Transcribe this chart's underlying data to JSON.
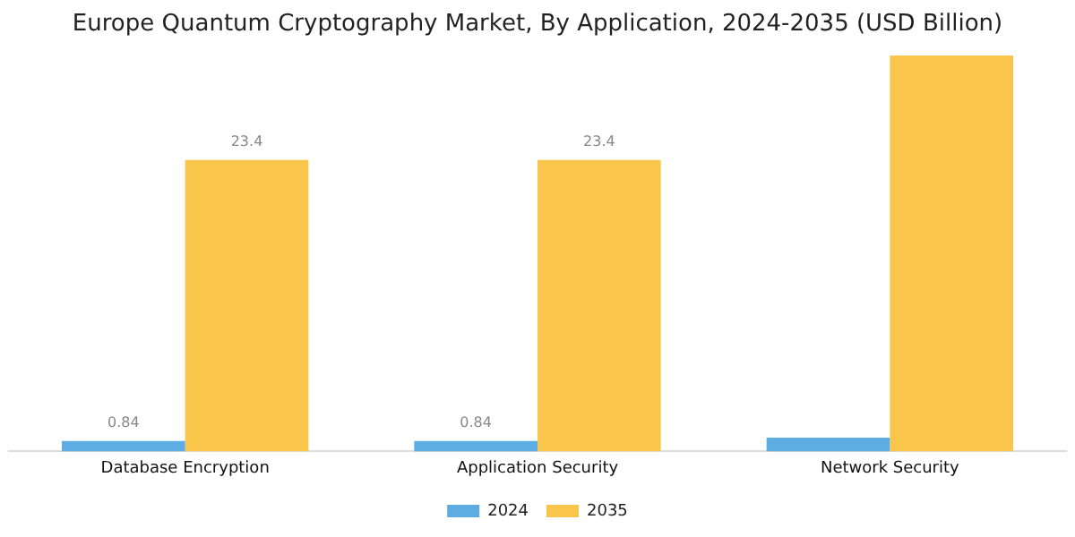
{
  "chart_data": {
    "type": "bar",
    "title": "Europe Quantum Cryptography Market, By Application, 2024-2035 (USD Billion)",
    "categories": [
      "Database Encryption",
      "Application Security",
      "Network Security"
    ],
    "series": [
      {
        "name": "2024",
        "color": "#5dade2",
        "values": [
          0.84,
          0.84,
          1.1
        ],
        "value_labels": [
          "0.84",
          "0.84",
          null
        ]
      },
      {
        "name": "2035",
        "color": "#f9c54b",
        "values": [
          23.4,
          23.4,
          31.8
        ],
        "value_labels": [
          "23.4",
          "23.4",
          null
        ]
      }
    ],
    "ylim": [
      0,
      32
    ],
    "grid": false,
    "legend": "bottom"
  }
}
